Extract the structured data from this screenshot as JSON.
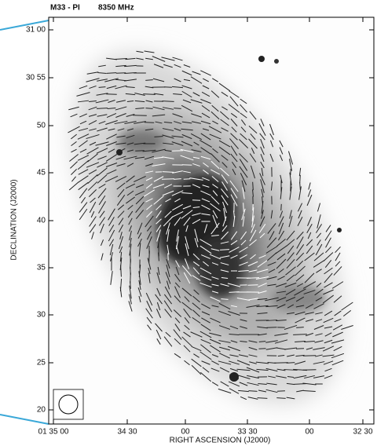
{
  "title": "M33 - PI",
  "frequency": "8350 MHz",
  "y_axis": {
    "label": "DECLINATION (J2000)",
    "ticks": [
      "31 00",
      "30 55",
      "50",
      "45",
      "40",
      "35",
      "30",
      "25",
      "20"
    ]
  },
  "x_axis": {
    "label": "RIGHT ASCENSION (J2000)",
    "ticks": [
      "01 35 00",
      "34 30",
      "00",
      "33 30",
      "00",
      "32 30"
    ]
  }
}
